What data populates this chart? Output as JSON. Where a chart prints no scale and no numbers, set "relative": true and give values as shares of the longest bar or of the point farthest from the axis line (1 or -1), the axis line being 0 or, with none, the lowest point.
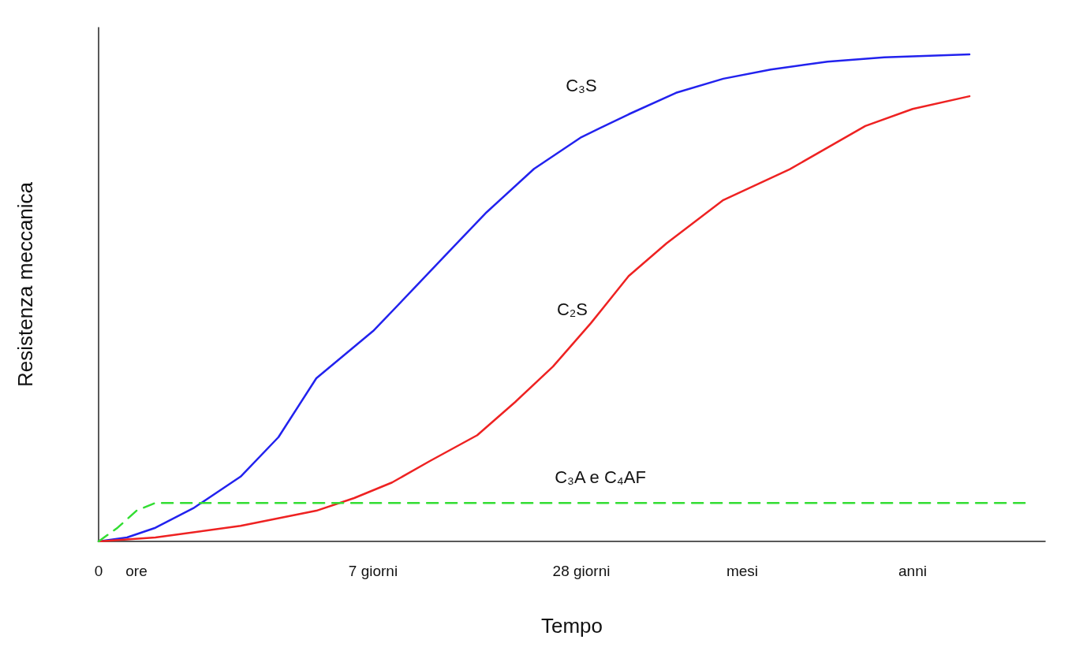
{
  "chart_data": {
    "type": "line",
    "xlabel": "Tempo",
    "ylabel": "Resistenza meccanica",
    "relative": true,
    "grid": false,
    "marker": "none",
    "categories": [
      "0",
      null,
      null,
      null,
      "ore",
      null,
      null,
      null,
      null,
      null,
      null,
      null,
      null,
      null,
      null,
      null,
      null,
      null,
      null,
      null,
      null,
      null,
      null,
      null,
      null,
      null,
      null,
      null,
      null,
      "7 giorni",
      null,
      null,
      null,
      null,
      null,
      null,
      null,
      null,
      null,
      null,
      null,
      null,
      null,
      null,
      null,
      null,
      null,
      null,
      null,
      null,
      null,
      "28 giorni",
      null,
      null,
      null,
      null,
      null,
      null,
      null,
      null,
      null,
      null,
      null,
      null,
      null,
      null,
      null,
      null,
      "mesi",
      null,
      null,
      null,
      null,
      null,
      null,
      null,
      null,
      null,
      null,
      null,
      null,
      null,
      null,
      null,
      null,
      null,
      "anni",
      null,
      null,
      null,
      null,
      null,
      null,
      null,
      null,
      null,
      null,
      null,
      null,
      null,
      null
    ],
    "series": [
      {
        "name": "C₃S",
        "color": "#2222ee",
        "line_style": "solid",
        "values": [
          0,
          null,
          null,
          0.008,
          null,
          null,
          0.028,
          null,
          null,
          null,
          0.068,
          null,
          null,
          null,
          null,
          0.133,
          null,
          null,
          null,
          0.214,
          null,
          null,
          null,
          0.335,
          null,
          null,
          null,
          null,
          null,
          0.432,
          null,
          null,
          null,
          0.513,
          null,
          null,
          null,
          0.595,
          null,
          null,
          null,
          0.676,
          null,
          null,
          null,
          null,
          0.765,
          null,
          null,
          null,
          null,
          0.83,
          null,
          null,
          null,
          null,
          0.877,
          null,
          null,
          null,
          null,
          0.921,
          null,
          null,
          null,
          null,
          0.95,
          null,
          null,
          null,
          null,
          0.969,
          null,
          null,
          null,
          null,
          null,
          0.985,
          null,
          null,
          null,
          null,
          null,
          0.994,
          null,
          null,
          null,
          null,
          null,
          null,
          null,
          null,
          1,
          null,
          null,
          null,
          null,
          null,
          null,
          null,
          null
        ]
      },
      {
        "name": "C₂S",
        "color": "#ee2222",
        "line_style": "solid",
        "values": [
          0,
          null,
          null,
          null,
          null,
          null,
          0.008,
          null,
          null,
          null,
          null,
          null,
          null,
          null,
          null,
          0.032,
          null,
          null,
          null,
          null,
          null,
          null,
          null,
          0.063,
          null,
          null,
          null,
          0.089,
          null,
          null,
          null,
          0.121,
          null,
          null,
          null,
          0.165,
          null,
          null,
          null,
          null,
          0.218,
          null,
          null,
          null,
          0.286,
          null,
          null,
          null,
          0.359,
          null,
          null,
          null,
          0.448,
          null,
          null,
          null,
          0.545,
          null,
          null,
          null,
          0.612,
          null,
          null,
          null,
          null,
          null,
          0.701,
          null,
          null,
          null,
          null,
          null,
          null,
          0.764,
          null,
          null,
          null,
          null,
          null,
          null,
          null,
          0.853,
          null,
          null,
          null,
          null,
          0.888,
          null,
          null,
          null,
          null,
          null,
          0.914,
          null,
          null,
          null,
          null,
          null,
          null,
          null,
          null
        ]
      },
      {
        "name": "C₃A e C₄AF",
        "color": "#33dd33",
        "line_style": "dashed",
        "values": [
          0,
          null,
          0.028,
          null,
          0.063,
          null,
          0.079,
          null,
          null,
          null,
          null,
          null,
          null,
          null,
          null,
          null,
          null,
          null,
          null,
          null,
          null,
          null,
          null,
          null,
          null,
          null,
          null,
          null,
          null,
          null,
          null,
          null,
          null,
          null,
          null,
          null,
          null,
          null,
          null,
          null,
          null,
          null,
          null,
          null,
          null,
          null,
          null,
          null,
          null,
          null,
          null,
          null,
          null,
          0.079,
          null,
          null,
          null,
          null,
          null,
          null,
          null,
          null,
          null,
          null,
          null,
          null,
          null,
          null,
          null,
          null,
          null,
          null,
          null,
          null,
          null,
          null,
          null,
          null,
          null,
          null,
          null,
          null,
          null,
          null,
          null,
          null,
          null,
          null,
          null,
          null,
          null,
          null,
          null,
          null,
          null,
          null,
          null,
          null,
          0.079,
          null,
          null
        ]
      }
    ]
  }
}
